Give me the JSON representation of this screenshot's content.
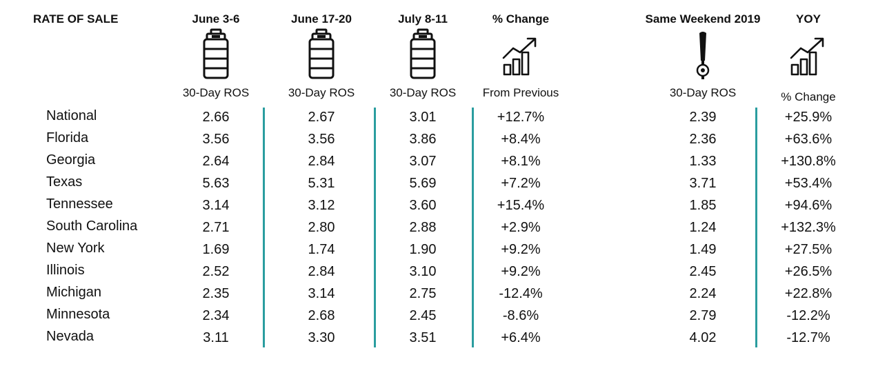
{
  "chart_data": {
    "type": "table",
    "title": "RATE OF SALE",
    "columns": [
      {
        "header": "June 3-6",
        "subheader": "30-Day ROS",
        "icon": "keg-icon"
      },
      {
        "header": "June 17-20",
        "subheader": "30-Day ROS",
        "icon": "keg-icon"
      },
      {
        "header": "July 8-11",
        "subheader": "30-Day ROS",
        "icon": "keg-icon"
      },
      {
        "header": "% Change",
        "subheader": "From Previous",
        "icon": "growth-chart-icon"
      },
      {
        "header": "Same Weekend 2019",
        "subheader": "30-Day ROS",
        "icon": "beer-tap-icon"
      },
      {
        "header": "YOY",
        "subheader": "% Change",
        "icon": "growth-chart-icon"
      }
    ],
    "rows": [
      {
        "label": "National",
        "values": [
          "2.66",
          "2.67",
          "3.01",
          "+12.7%",
          "2.39",
          "+25.9%"
        ]
      },
      {
        "label": "Florida",
        "values": [
          "3.56",
          "3.56",
          "3.86",
          "+8.4%",
          "2.36",
          "+63.6%"
        ]
      },
      {
        "label": "Georgia",
        "values": [
          "2.64",
          "2.84",
          "3.07",
          "+8.1%",
          "1.33",
          "+130.8%"
        ]
      },
      {
        "label": "Texas",
        "values": [
          "5.63",
          "5.31",
          "5.69",
          "+7.2%",
          "3.71",
          "+53.4%"
        ]
      },
      {
        "label": "Tennessee",
        "values": [
          "3.14",
          "3.12",
          "3.60",
          "+15.4%",
          "1.85",
          "+94.6%"
        ]
      },
      {
        "label": "South Carolina",
        "values": [
          "2.71",
          "2.80",
          "2.88",
          "+2.9%",
          "1.24",
          "+132.3%"
        ]
      },
      {
        "label": "New York",
        "values": [
          "1.69",
          "1.74",
          "1.90",
          "+9.2%",
          "1.49",
          "+27.5%"
        ]
      },
      {
        "label": "Illinois",
        "values": [
          "2.52",
          "2.84",
          "3.10",
          "+9.2%",
          "2.45",
          "+26.5%"
        ]
      },
      {
        "label": "Michigan",
        "values": [
          "2.35",
          "3.14",
          "2.75",
          "-12.4%",
          "2.24",
          "+22.8%"
        ]
      },
      {
        "label": "Minnesota",
        "values": [
          "2.34",
          "2.68",
          "2.45",
          "-8.6%",
          "2.79",
          "-12.2%"
        ]
      },
      {
        "label": "Nevada",
        "values": [
          "3.11",
          "3.30",
          "3.51",
          "+6.4%",
          "4.02",
          "-12.7%"
        ]
      }
    ],
    "divider_color": "#2a9d9f"
  }
}
